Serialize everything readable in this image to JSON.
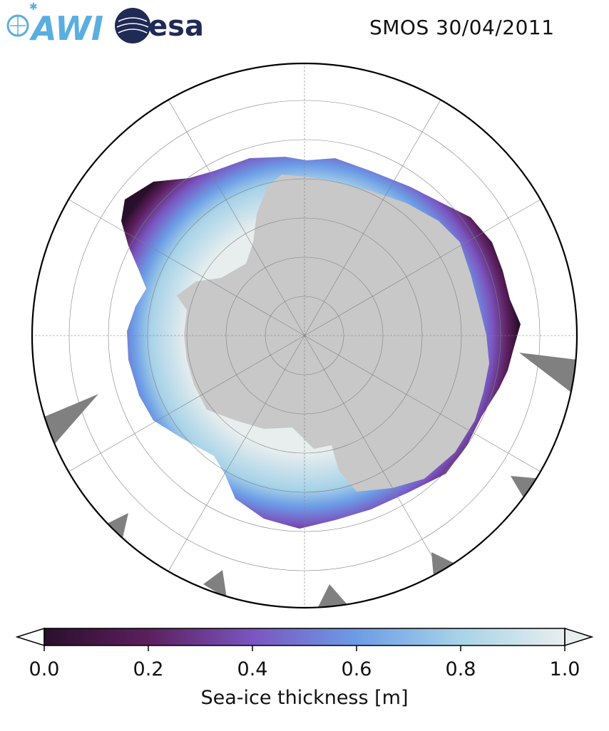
{
  "header": {
    "awi_logo_text": "AWI",
    "esa_logo_text": "esa",
    "date_title": "SMOS 30/04/2011"
  },
  "colorbar": {
    "label": "Sea-ice thickness [m]",
    "ticks": [
      "0.0",
      "0.2",
      "0.4",
      "0.6",
      "0.8",
      "1.0"
    ],
    "range": [
      0.0,
      1.0
    ],
    "extend": "both",
    "colors": [
      "#2a0f2c",
      "#5c1f5e",
      "#7a55c0",
      "#6c9ce6",
      "#a8d3e8",
      "#e8eeee"
    ]
  },
  "map": {
    "projection": "south-polar-stereographic",
    "colors": {
      "land": "#c8c8c8",
      "ice_shelf": "#e9e9e9",
      "masked": "#808080",
      "ocean": "#ffffff",
      "graticule": "#808080",
      "boundary": "#000000"
    }
  }
}
